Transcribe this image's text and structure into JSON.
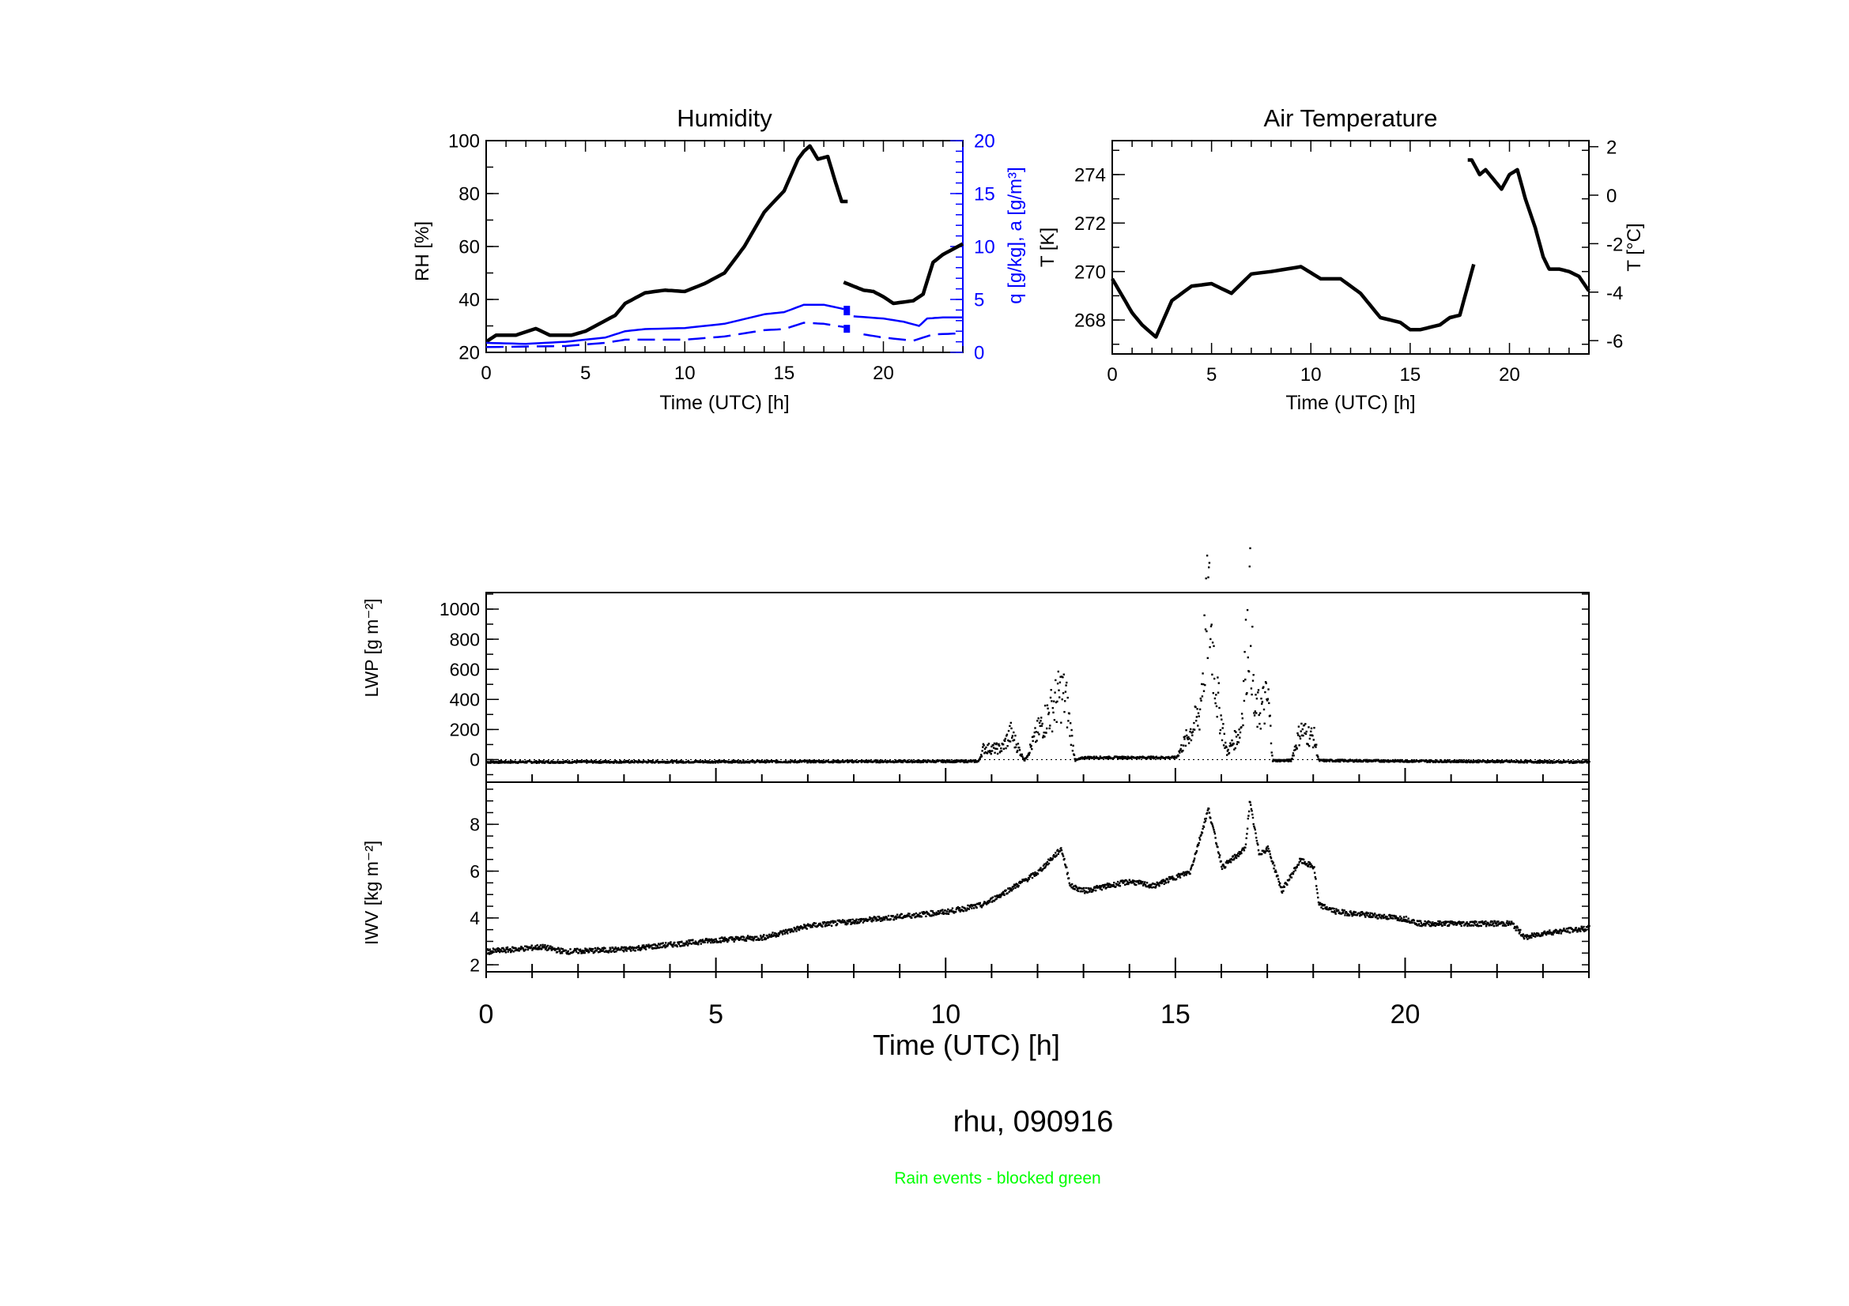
{
  "chart_data": [
    {
      "id": "humidity",
      "type": "line",
      "title": "Humidity",
      "xlabel": "Time (UTC) [h]",
      "ylabel": "RH [%]",
      "y2label": "q [g/kg], a [g/m³]",
      "xlim": [
        0,
        24
      ],
      "ylim": [
        20,
        100
      ],
      "y2lim": [
        0,
        20
      ],
      "xticks": [
        0,
        5,
        10,
        15,
        20
      ],
      "yticks": [
        20,
        40,
        60,
        80,
        100
      ],
      "y2ticks": [
        0,
        5,
        10,
        15,
        20
      ],
      "y2color": "#0000ff",
      "series": [
        {
          "name": "RH",
          "axis": "left",
          "color": "#000000",
          "style": "solid",
          "segments": [
            [
              [
                0,
                24
              ],
              [
                0.5,
                26.5
              ],
              [
                1.5,
                26.5
              ],
              [
                2.5,
                29
              ],
              [
                3.2,
                26.5
              ],
              [
                4.3,
                26.5
              ],
              [
                5,
                28
              ],
              [
                6.5,
                34
              ],
              [
                7,
                38.5
              ],
              [
                8,
                42.5
              ],
              [
                9,
                43.5
              ],
              [
                10,
                43
              ],
              [
                11,
                46
              ],
              [
                12,
                50
              ],
              [
                13,
                60
              ],
              [
                14,
                73
              ],
              [
                15,
                81
              ],
              [
                15.7,
                93
              ],
              [
                16,
                96
              ],
              [
                16.3,
                98
              ],
              [
                16.7,
                93
              ],
              [
                17.2,
                94
              ],
              [
                17.6,
                84
              ],
              [
                17.9,
                77
              ],
              [
                18.2,
                77
              ]
            ],
            [
              [
                18,
                46.5
              ],
              [
                18.5,
                45
              ],
              [
                19,
                43.5
              ],
              [
                19.5,
                43
              ],
              [
                20,
                41
              ],
              [
                20.5,
                38.5
              ],
              [
                21.5,
                39.5
              ],
              [
                22,
                42
              ],
              [
                22.5,
                54
              ],
              [
                23,
                57
              ],
              [
                24,
                61
              ]
            ]
          ]
        },
        {
          "name": "q",
          "axis": "right",
          "color": "#0000ff",
          "style": "solid",
          "segments": [
            [
              [
                0,
                0.9
              ],
              [
                2,
                0.8
              ],
              [
                4,
                1.0
              ],
              [
                6,
                1.4
              ],
              [
                7,
                2.0
              ],
              [
                8,
                2.2
              ],
              [
                10,
                2.3
              ],
              [
                12,
                2.7
              ],
              [
                14,
                3.6
              ],
              [
                15,
                3.8
              ],
              [
                16,
                4.5
              ],
              [
                17,
                4.5
              ],
              [
                18,
                4.1
              ]
            ],
            [
              [
                18.5,
                3.4
              ],
              [
                20,
                3.2
              ],
              [
                21,
                2.9
              ],
              [
                21.8,
                2.5
              ],
              [
                22.2,
                3.2
              ],
              [
                23,
                3.3
              ],
              [
                24,
                3.3
              ]
            ]
          ]
        },
        {
          "name": "a",
          "axis": "right",
          "color": "#0000ff",
          "style": "dashed",
          "segments": [
            [
              [
                0,
                0.5
              ],
              [
                4,
                0.6
              ],
              [
                6,
                0.9
              ],
              [
                7,
                1.2
              ],
              [
                10,
                1.2
              ],
              [
                12,
                1.5
              ],
              [
                14,
                2.1
              ],
              [
                15,
                2.2
              ],
              [
                16,
                2.8
              ],
              [
                17,
                2.7
              ],
              [
                18,
                2.4
              ]
            ],
            [
              [
                19,
                1.7
              ],
              [
                20,
                1.4
              ],
              [
                21.5,
                1.1
              ],
              [
                22.5,
                1.7
              ],
              [
                24,
                1.8
              ]
            ]
          ]
        }
      ]
    },
    {
      "id": "temperature",
      "type": "line",
      "title": "Air Temperature",
      "xlabel": "Time (UTC) [h]",
      "ylabel": "T [K]",
      "y2label": "T [°C]",
      "xlim": [
        0,
        24
      ],
      "ylim": [
        266.6,
        275.4
      ],
      "xticks": [
        0,
        5,
        10,
        15,
        20
      ],
      "yticks": [
        268,
        270,
        272,
        274
      ],
      "y2ticks": [
        2,
        0,
        -2,
        -4,
        -6
      ],
      "series": [
        {
          "name": "T",
          "color": "#000000",
          "style": "solid",
          "segments": [
            [
              [
                0,
                269.7
              ],
              [
                1,
                268.3
              ],
              [
                1.5,
                267.8
              ],
              [
                2.2,
                267.3
              ],
              [
                3,
                268.8
              ],
              [
                4,
                269.4
              ],
              [
                5,
                269.5
              ],
              [
                6,
                269.1
              ],
              [
                7,
                269.9
              ],
              [
                8,
                270.0
              ],
              [
                9.5,
                270.2
              ],
              [
                10.5,
                269.7
              ],
              [
                11.5,
                269.7
              ],
              [
                12.5,
                269.1
              ],
              [
                13.5,
                268.1
              ],
              [
                14.5,
                267.9
              ],
              [
                15,
                267.6
              ],
              [
                15.5,
                267.6
              ],
              [
                16.5,
                267.8
              ],
              [
                17,
                268.1
              ],
              [
                17.5,
                268.2
              ],
              [
                18.2,
                270.3
              ]
            ],
            [
              [
                17.9,
                274.6
              ],
              [
                18.1,
                274.6
              ],
              [
                18.5,
                274.0
              ],
              [
                18.8,
                274.2
              ],
              [
                19.3,
                273.7
              ],
              [
                19.6,
                273.4
              ],
              [
                20,
                274.0
              ],
              [
                20.4,
                274.2
              ],
              [
                20.8,
                273.0
              ],
              [
                21.3,
                271.8
              ],
              [
                21.7,
                270.6
              ],
              [
                22,
                270.1
              ],
              [
                22.5,
                270.1
              ],
              [
                23,
                270.0
              ],
              [
                23.5,
                269.8
              ],
              [
                24,
                269.2
              ]
            ]
          ]
        }
      ]
    },
    {
      "id": "lwp",
      "type": "scatter",
      "ylabel": "LWP [g m⁻²]",
      "xlim": [
        0,
        24
      ],
      "ylim": [
        -150,
        1110
      ],
      "yticks": [
        0,
        200,
        400,
        600,
        800,
        1000
      ],
      "profile": [
        [
          0,
          -10
        ],
        [
          10.7,
          -5
        ],
        [
          10.8,
          80
        ],
        [
          11.2,
          80
        ],
        [
          11.4,
          180
        ],
        [
          11.7,
          0
        ],
        [
          12,
          200
        ],
        [
          12.5,
          450
        ],
        [
          12.6,
          400
        ],
        [
          12.8,
          0
        ],
        [
          13,
          20
        ],
        [
          15,
          20
        ],
        [
          15.5,
          300
        ],
        [
          15.7,
          1050
        ],
        [
          15.9,
          400
        ],
        [
          16.1,
          50
        ],
        [
          16.4,
          200
        ],
        [
          16.6,
          1050
        ],
        [
          16.7,
          300
        ],
        [
          17,
          400
        ],
        [
          17.1,
          0
        ],
        [
          17.5,
          0
        ],
        [
          17.7,
          200
        ],
        [
          18,
          150
        ],
        [
          18.1,
          0
        ],
        [
          24,
          -10
        ]
      ]
    },
    {
      "id": "iwv",
      "type": "scatter",
      "ylabel": "IWV [kg m⁻²]",
      "xlabel": "Time (UTC) [h]",
      "xlim": [
        0,
        24
      ],
      "ylim": [
        1.7,
        9.8
      ],
      "xticks": [
        0,
        5,
        10,
        15,
        20
      ],
      "yticks": [
        2,
        4,
        6,
        8
      ],
      "profile": [
        [
          0,
          2.6
        ],
        [
          1.2,
          2.8
        ],
        [
          1.7,
          2.6
        ],
        [
          3,
          2.7
        ],
        [
          5,
          3.1
        ],
        [
          6,
          3.2
        ],
        [
          7,
          3.7
        ],
        [
          8,
          3.9
        ],
        [
          10,
          4.3
        ],
        [
          10.8,
          4.6
        ],
        [
          11.5,
          5.4
        ],
        [
          12,
          6.0
        ],
        [
          12.5,
          7.0
        ],
        [
          12.7,
          5.4
        ],
        [
          13,
          5.2
        ],
        [
          14,
          5.6
        ],
        [
          14.5,
          5.4
        ],
        [
          15,
          5.8
        ],
        [
          15.3,
          6.0
        ],
        [
          15.7,
          8.7
        ],
        [
          16,
          6.2
        ],
        [
          16.5,
          7.0
        ],
        [
          16.6,
          9.0
        ],
        [
          16.8,
          6.8
        ],
        [
          17,
          7.0
        ],
        [
          17.3,
          5.2
        ],
        [
          17.7,
          6.5
        ],
        [
          18,
          6.2
        ],
        [
          18.1,
          4.6
        ],
        [
          18.5,
          4.3
        ],
        [
          20,
          4.0
        ],
        [
          20.3,
          3.8
        ],
        [
          22.3,
          3.8
        ],
        [
          22.6,
          3.2
        ],
        [
          23,
          3.4
        ],
        [
          24,
          3.6
        ]
      ]
    }
  ],
  "footer": {
    "station": "rhu, 090916",
    "note": "Rain events - blocked green",
    "note_color": "#00ff00"
  }
}
